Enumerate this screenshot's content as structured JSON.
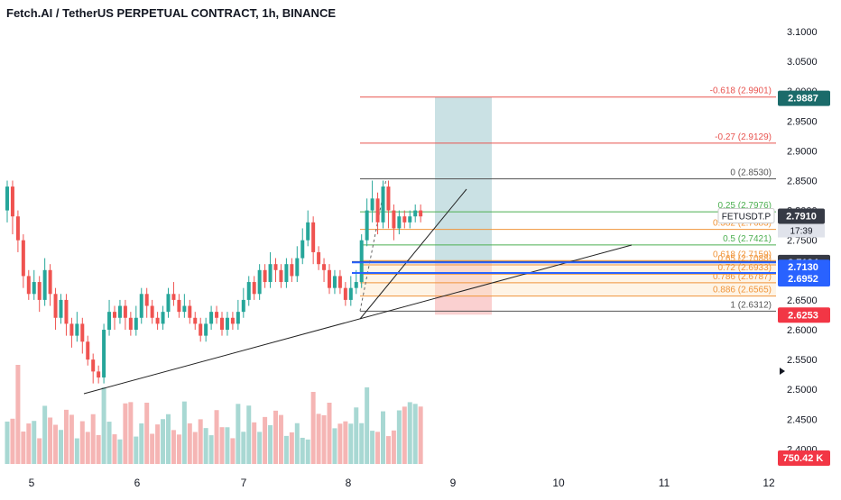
{
  "header": {
    "title": "Fetch.AI / TetherUS PERPETUAL CONTRACT, 1h, BINANCE"
  },
  "colors": {
    "up": "#26a69a",
    "down": "#ef5350",
    "fib_red": "#e8534f",
    "fib_green": "#4caf50",
    "fib_orange": "#f0953a",
    "fib_gray": "#555555",
    "blue_tag": "#2962ff",
    "dark_tag": "#363a45",
    "red_tag": "#f23645",
    "teal_tag": "#1b6b6a",
    "target_zone": "#9ec9cd",
    "stop_zone": "#f7b1b1"
  },
  "price_axis": {
    "ticks": [
      "3.1000",
      "3.0500",
      "3.0000",
      "2.9500",
      "2.9000",
      "2.8500",
      "2.8000",
      "2.7500",
      "2.7000",
      "2.6500",
      "2.6000",
      "2.5500",
      "2.5000",
      "2.4500",
      "2.4000"
    ],
    "min": 2.375,
    "max": 3.115
  },
  "time_axis": {
    "labels": [
      "5",
      "6",
      "7",
      "8",
      "9",
      "10",
      "11",
      "12"
    ]
  },
  "fib_levels": [
    {
      "ratio": "-0.618",
      "price": 2.9901,
      "text": "-0.618 (2.9901)",
      "color": "fib_red"
    },
    {
      "ratio": "-0.27",
      "price": 2.9129,
      "text": "-0.27 (2.9129)",
      "color": "fib_red"
    },
    {
      "ratio": "0",
      "price": 2.853,
      "text": "0 (2.8530)",
      "color": "fib_gray"
    },
    {
      "ratio": "0.25",
      "price": 2.7976,
      "text": "0.25 (2.7976)",
      "color": "fib_green"
    },
    {
      "ratio": "0.382",
      "price": 2.7683,
      "text": "0.382 (2.7683)",
      "color": "fib_orange"
    },
    {
      "ratio": "0.5",
      "price": 2.7421,
      "text": "0.5 (2.7421)",
      "color": "fib_green"
    },
    {
      "ratio": "0.618",
      "price": 2.7159,
      "text": "0.618 (2.7159)",
      "color": "fib_orange"
    },
    {
      "ratio": "0.65",
      "price": 2.7088,
      "text": "0.65 (2.7088)",
      "color": "fib_orange"
    },
    {
      "ratio": "0.72",
      "price": 2.6933,
      "text": "0.72 (2.6933)",
      "color": "fib_orange"
    },
    {
      "ratio": "0.786",
      "price": 2.6787,
      "text": "0.786 (2.6787)",
      "color": "fib_orange"
    },
    {
      "ratio": "0.886",
      "price": 2.6565,
      "text": "0.886 (2.6565)",
      "color": "fib_orange"
    },
    {
      "ratio": "1",
      "price": 2.6312,
      "text": "1 (2.6312)",
      "color": "fib_gray"
    }
  ],
  "price_tags": [
    {
      "label": "2.9887",
      "price": 2.9887,
      "color": "teal_tag"
    },
    {
      "label": "2.7910",
      "price": 2.791,
      "color": "dark_tag",
      "sub": "17:39"
    },
    {
      "label": "2.7134",
      "price": 2.7134,
      "color": "dark_tag"
    },
    {
      "label": "2.7130",
      "price": 2.713,
      "color": "blue_tag"
    },
    {
      "label": "2.6952",
      "price": 2.6952,
      "color": "blue_tag"
    },
    {
      "label": "2.6253",
      "price": 2.6253,
      "color": "red_tag"
    },
    {
      "label": "750.42 K",
      "color": "red_tag"
    }
  ],
  "symbol_badge": "FETUSDT.P",
  "position": {
    "entry": 2.7134,
    "target": 2.9901,
    "stop": 2.6253
  },
  "horizontal_lines": [
    {
      "price": 2.7134,
      "color": "dark_tag"
    },
    {
      "price": 2.713,
      "color": "blue_tag"
    },
    {
      "price": 2.6952,
      "color": "blue_tag"
    }
  ],
  "chart_data": {
    "type": "candlestick",
    "symbol": "FETUSDT.P",
    "interval": "1h",
    "x_labels": [
      "5",
      "6",
      "7",
      "8",
      "9",
      "10",
      "11",
      "12"
    ],
    "ylim": [
      2.375,
      3.115
    ],
    "candles": [
      [
        2.8,
        2.84,
        2.85,
        2.78
      ],
      [
        2.84,
        2.79,
        2.85,
        2.76
      ],
      [
        2.79,
        2.75,
        2.8,
        2.73
      ],
      [
        2.75,
        2.69,
        2.76,
        2.67
      ],
      [
        2.69,
        2.66,
        2.7,
        2.65
      ],
      [
        2.66,
        2.68,
        2.7,
        2.65
      ],
      [
        2.68,
        2.65,
        2.69,
        2.63
      ],
      [
        2.65,
        2.7,
        2.72,
        2.64
      ],
      [
        2.7,
        2.66,
        2.71,
        2.64
      ],
      [
        2.66,
        2.62,
        2.67,
        2.6
      ],
      [
        2.62,
        2.65,
        2.66,
        2.61
      ],
      [
        2.65,
        2.61,
        2.66,
        2.59
      ],
      [
        2.61,
        2.59,
        2.62,
        2.57
      ],
      [
        2.59,
        2.61,
        2.63,
        2.58
      ],
      [
        2.61,
        2.58,
        2.62,
        2.56
      ],
      [
        2.58,
        2.55,
        2.59,
        2.54
      ],
      [
        2.55,
        2.53,
        2.56,
        2.51
      ],
      [
        2.53,
        2.52,
        2.54,
        2.51
      ],
      [
        2.52,
        2.6,
        2.61,
        2.51
      ],
      [
        2.6,
        2.63,
        2.65,
        2.59
      ],
      [
        2.63,
        2.62,
        2.64,
        2.6
      ],
      [
        2.62,
        2.64,
        2.65,
        2.61
      ],
      [
        2.64,
        2.62,
        2.65,
        2.6
      ],
      [
        2.62,
        2.6,
        2.63,
        2.59
      ],
      [
        2.6,
        2.62,
        2.64,
        2.59
      ],
      [
        2.62,
        2.66,
        2.67,
        2.61
      ],
      [
        2.66,
        2.64,
        2.67,
        2.62
      ],
      [
        2.64,
        2.62,
        2.65,
        2.61
      ],
      [
        2.62,
        2.61,
        2.63,
        2.6
      ],
      [
        2.61,
        2.63,
        2.64,
        2.6
      ],
      [
        2.63,
        2.66,
        2.67,
        2.62
      ],
      [
        2.66,
        2.65,
        2.68,
        2.64
      ],
      [
        2.65,
        2.63,
        2.66,
        2.62
      ],
      [
        2.63,
        2.64,
        2.66,
        2.62
      ],
      [
        2.64,
        2.62,
        2.65,
        2.61
      ],
      [
        2.62,
        2.61,
        2.63,
        2.6
      ],
      [
        2.61,
        2.59,
        2.62,
        2.58
      ],
      [
        2.59,
        2.61,
        2.62,
        2.58
      ],
      [
        2.61,
        2.63,
        2.64,
        2.6
      ],
      [
        2.63,
        2.62,
        2.64,
        2.61
      ],
      [
        2.62,
        2.6,
        2.63,
        2.59
      ],
      [
        2.6,
        2.62,
        2.63,
        2.59
      ],
      [
        2.62,
        2.61,
        2.63,
        2.6
      ],
      [
        2.61,
        2.63,
        2.65,
        2.6
      ],
      [
        2.63,
        2.65,
        2.67,
        2.62
      ],
      [
        2.65,
        2.68,
        2.69,
        2.64
      ],
      [
        2.68,
        2.66,
        2.69,
        2.65
      ],
      [
        2.66,
        2.7,
        2.71,
        2.65
      ],
      [
        2.7,
        2.68,
        2.71,
        2.67
      ],
      [
        2.68,
        2.71,
        2.73,
        2.67
      ],
      [
        2.71,
        2.7,
        2.72,
        2.68
      ],
      [
        2.7,
        2.68,
        2.71,
        2.67
      ],
      [
        2.68,
        2.71,
        2.72,
        2.67
      ],
      [
        2.71,
        2.69,
        2.72,
        2.68
      ],
      [
        2.69,
        2.72,
        2.74,
        2.68
      ],
      [
        2.72,
        2.75,
        2.77,
        2.71
      ],
      [
        2.75,
        2.78,
        2.8,
        2.74
      ],
      [
        2.78,
        2.73,
        2.79,
        2.71
      ],
      [
        2.73,
        2.71,
        2.74,
        2.7
      ],
      [
        2.71,
        2.7,
        2.72,
        2.68
      ],
      [
        2.7,
        2.67,
        2.71,
        2.66
      ],
      [
        2.67,
        2.69,
        2.7,
        2.66
      ],
      [
        2.69,
        2.67,
        2.7,
        2.66
      ],
      [
        2.67,
        2.65,
        2.68,
        2.64
      ],
      [
        2.65,
        2.67,
        2.69,
        2.64
      ],
      [
        2.67,
        2.68,
        2.7,
        2.66
      ],
      [
        2.68,
        2.75,
        2.76,
        2.67
      ],
      [
        2.75,
        2.8,
        2.82,
        2.74
      ],
      [
        2.8,
        2.82,
        2.85,
        2.78
      ],
      [
        2.82,
        2.78,
        2.83,
        2.76
      ],
      [
        2.78,
        2.84,
        2.85,
        2.77
      ],
      [
        2.84,
        2.8,
        2.85,
        2.77
      ],
      [
        2.8,
        2.77,
        2.81,
        2.75
      ],
      [
        2.77,
        2.79,
        2.8,
        2.76
      ],
      [
        2.79,
        2.78,
        2.8,
        2.77
      ],
      [
        2.78,
        2.79,
        2.8,
        2.77
      ],
      [
        2.79,
        2.8,
        2.81,
        2.78
      ],
      [
        2.8,
        2.79,
        2.81,
        2.78
      ]
    ],
    "volume_max_k": 1500
  }
}
